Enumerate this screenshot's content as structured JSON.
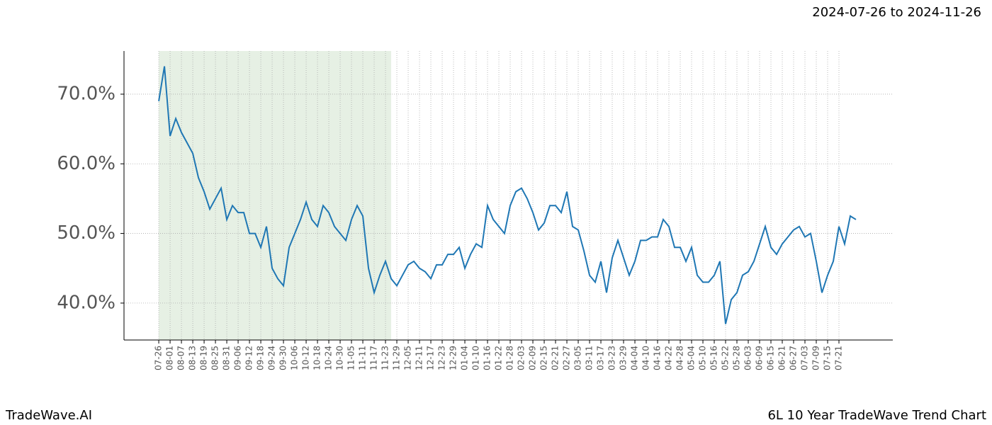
{
  "header": {
    "date_range": "2024-07-26 to 2024-11-26"
  },
  "footer": {
    "brand": "TradeWave.AI",
    "chart_name": "6L 10 Year TradeWave Trend Chart"
  },
  "chart_data": {
    "type": "line",
    "color": "#1f77b4",
    "grid": true,
    "shade": [
      0,
      123
    ],
    "shade_color": "#e6f0e4",
    "xlim": [
      -18.4,
      388.5
    ],
    "ylim": [
      34.7,
      76.2
    ],
    "yticks": [
      {
        "value": 40,
        "label": "40.0%"
      },
      {
        "value": 50,
        "label": "50.0%"
      },
      {
        "value": 60,
        "label": "60.0%"
      },
      {
        "value": 70,
        "label": "70.0%"
      }
    ],
    "xticks": [
      {
        "value": 0,
        "label": "07-26"
      },
      {
        "value": 6,
        "label": "08-01"
      },
      {
        "value": 12,
        "label": "08-07"
      },
      {
        "value": 18,
        "label": "08-13"
      },
      {
        "value": 24,
        "label": "08-19"
      },
      {
        "value": 30,
        "label": "08-25"
      },
      {
        "value": 36,
        "label": "08-31"
      },
      {
        "value": 42,
        "label": "09-06"
      },
      {
        "value": 48,
        "label": "09-12"
      },
      {
        "value": 54,
        "label": "09-18"
      },
      {
        "value": 60,
        "label": "09-24"
      },
      {
        "value": 66,
        "label": "09-30"
      },
      {
        "value": 72,
        "label": "10-06"
      },
      {
        "value": 78,
        "label": "10-12"
      },
      {
        "value": 84,
        "label": "10-18"
      },
      {
        "value": 90,
        "label": "10-24"
      },
      {
        "value": 96,
        "label": "10-30"
      },
      {
        "value": 102,
        "label": "11-05"
      },
      {
        "value": 108,
        "label": "11-11"
      },
      {
        "value": 114,
        "label": "11-17"
      },
      {
        "value": 120,
        "label": "11-23"
      },
      {
        "value": 126,
        "label": "11-29"
      },
      {
        "value": 132,
        "label": "12-05"
      },
      {
        "value": 138,
        "label": "12-11"
      },
      {
        "value": 144,
        "label": "12-17"
      },
      {
        "value": 150,
        "label": "12-23"
      },
      {
        "value": 156,
        "label": "12-29"
      },
      {
        "value": 162,
        "label": "01-04"
      },
      {
        "value": 168,
        "label": "01-10"
      },
      {
        "value": 174,
        "label": "01-16"
      },
      {
        "value": 180,
        "label": "01-22"
      },
      {
        "value": 186,
        "label": "01-28"
      },
      {
        "value": 192,
        "label": "02-03"
      },
      {
        "value": 198,
        "label": "02-09"
      },
      {
        "value": 204,
        "label": "02-15"
      },
      {
        "value": 210,
        "label": "02-21"
      },
      {
        "value": 216,
        "label": "02-27"
      },
      {
        "value": 222,
        "label": "03-05"
      },
      {
        "value": 228,
        "label": "03-11"
      },
      {
        "value": 234,
        "label": "03-17"
      },
      {
        "value": 240,
        "label": "03-23"
      },
      {
        "value": 246,
        "label": "03-29"
      },
      {
        "value": 252,
        "label": "04-04"
      },
      {
        "value": 258,
        "label": "04-10"
      },
      {
        "value": 264,
        "label": "04-16"
      },
      {
        "value": 270,
        "label": "04-22"
      },
      {
        "value": 276,
        "label": "04-28"
      },
      {
        "value": 282,
        "label": "05-04"
      },
      {
        "value": 288,
        "label": "05-10"
      },
      {
        "value": 294,
        "label": "05-16"
      },
      {
        "value": 300,
        "label": "05-22"
      },
      {
        "value": 306,
        "label": "05-28"
      },
      {
        "value": 312,
        "label": "06-03"
      },
      {
        "value": 318,
        "label": "06-09"
      },
      {
        "value": 324,
        "label": "06-15"
      },
      {
        "value": 330,
        "label": "06-21"
      },
      {
        "value": 336,
        "label": "06-27"
      },
      {
        "value": 342,
        "label": "07-03"
      },
      {
        "value": 348,
        "label": "07-09"
      },
      {
        "value": 354,
        "label": "07-15"
      },
      {
        "value": 360,
        "label": "07-21"
      }
    ],
    "x": [
      0,
      3,
      6,
      9,
      12,
      15,
      18,
      21,
      24,
      27,
      30,
      33,
      36,
      39,
      42,
      45,
      48,
      51,
      54,
      57,
      60,
      63,
      66,
      69,
      72,
      75,
      78,
      81,
      84,
      87,
      90,
      93,
      96,
      99,
      102,
      105,
      108,
      111,
      114,
      117,
      120,
      123,
      126,
      129,
      132,
      135,
      138,
      141,
      144,
      147,
      150,
      153,
      156,
      159,
      162,
      165,
      168,
      171,
      174,
      177,
      180,
      183,
      186,
      189,
      192,
      195,
      198,
      201,
      204,
      207,
      210,
      213,
      216,
      219,
      222,
      225,
      228,
      231,
      234,
      237,
      240,
      243,
      246,
      249,
      252,
      255,
      258,
      261,
      264,
      267,
      270,
      273,
      276,
      279,
      282,
      285,
      288,
      291,
      294,
      297,
      300,
      303,
      306,
      309,
      312,
      315,
      318,
      321,
      324,
      327,
      330,
      333,
      336,
      339,
      342,
      345,
      348,
      351,
      354,
      357,
      360,
      363,
      366,
      369
    ],
    "values": [
      69,
      74,
      64,
      66.5,
      64.5,
      63,
      61.5,
      58,
      56,
      53.5,
      55,
      56.5,
      52,
      54,
      53,
      53,
      50,
      50,
      48,
      51,
      45,
      43.5,
      42.5,
      48,
      50,
      52,
      54.5,
      52,
      51,
      54,
      53,
      51,
      50,
      49,
      52,
      54,
      52.5,
      45,
      41.5,
      44,
      46,
      43.5,
      42.5,
      44,
      45.5,
      46,
      45,
      44.5,
      43.5,
      45.5,
      45.5,
      47,
      47,
      48,
      45,
      47,
      48.5,
      48,
      54,
      52,
      51,
      50,
      54,
      56,
      56.5,
      55,
      53,
      50.5,
      51.5,
      54,
      54,
      53,
      56,
      51,
      50.5,
      47.5,
      44,
      43,
      46,
      41.5,
      46.5,
      49,
      46.5,
      44,
      46,
      49,
      49,
      49.5,
      49.5,
      52,
      51,
      48,
      48,
      46,
      48,
      44,
      43,
      43,
      44,
      46,
      37,
      40.5,
      41.5,
      44,
      44.5,
      46,
      48.5,
      51,
      48,
      47,
      48.5,
      49.5,
      50.5,
      51,
      49.5,
      50,
      46,
      41.5,
      44,
      46,
      51,
      48.5,
      52.5,
      52
    ]
  }
}
